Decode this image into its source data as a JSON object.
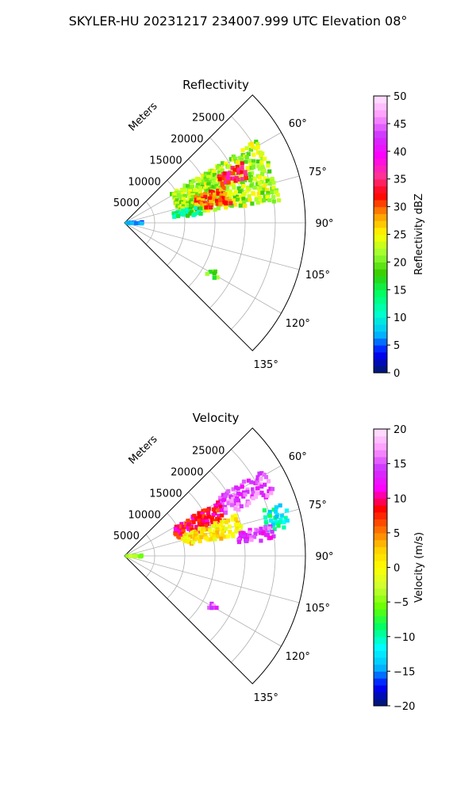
{
  "figure_title": "SKYLER-HU  20231217  234007.999 UTC Elevation 08°",
  "chart_data": [
    {
      "type": "polar-sector",
      "title": "Reflectivity",
      "radial_axis_label": "Meters",
      "radial_ticks": [
        "5000",
        "10000",
        "15000",
        "20000",
        "25000"
      ],
      "angle_ticks": [
        "60°",
        "75°",
        "90°",
        "105°",
        "120°",
        "135°"
      ],
      "angle_range_deg": [
        45,
        135
      ],
      "range_max_m": 30000,
      "colorbar": {
        "label": "Reflectivity dBZ",
        "min": 0,
        "max": 50,
        "tick_labels": [
          "0",
          "5",
          "10",
          "15",
          "20",
          "25",
          "30",
          "35",
          "40",
          "45",
          "50"
        ],
        "stops": [
          "#001a66",
          "#0000ff",
          "#00bfff",
          "#00ffcc",
          "#00ff66",
          "#33cc00",
          "#99ff33",
          "#ffff00",
          "#ff9900",
          "#ff0000",
          "#ff3399",
          "#ff00ff",
          "#cc33ff",
          "#ff99ff",
          "#ffe6ff"
        ]
      },
      "echo_regions": [
        {
          "az": [
            58,
            82
          ],
          "range_km": [
            9,
            26
          ],
          "dBZ": 22
        },
        {
          "az": [
            63,
            70
          ],
          "range_km": [
            17,
            22
          ],
          "dBZ": 34
        },
        {
          "az": [
            70,
            80
          ],
          "range_km": [
            12,
            18
          ],
          "dBZ": 30
        },
        {
          "az": [
            78,
            84
          ],
          "range_km": [
            8,
            13
          ],
          "dBZ": 14
        },
        {
          "az": [
            88,
            93
          ],
          "range_km": [
            0,
            3
          ],
          "dBZ": 7
        },
        {
          "az": [
            118,
            122
          ],
          "range_km": [
            16,
            18
          ],
          "dBZ": 19
        }
      ]
    },
    {
      "type": "polar-sector",
      "title": "Velocity",
      "radial_axis_label": "Meters",
      "radial_ticks": [
        "5000",
        "10000",
        "15000",
        "20000",
        "25000"
      ],
      "angle_ticks": [
        "60°",
        "75°",
        "90°",
        "105°",
        "120°",
        "135°"
      ],
      "angle_range_deg": [
        45,
        135
      ],
      "range_max_m": 30000,
      "colorbar": {
        "label": "Velocity (m/s)",
        "min": -20,
        "max": 20,
        "tick_labels": [
          "−20",
          "−15",
          "−10",
          "−5",
          "0",
          "5",
          "10",
          "15",
          "20"
        ],
        "stops": [
          "#001a66",
          "#0000ff",
          "#00bfff",
          "#00ffff",
          "#00ff66",
          "#66ff00",
          "#ccff33",
          "#ffff00",
          "#ffcc00",
          "#ff6600",
          "#ff0000",
          "#ff00ff",
          "#cc33ff",
          "#ff99ff",
          "#ffe6ff"
        ]
      },
      "echo_regions": [
        {
          "az": [
            58,
            68
          ],
          "range_km": [
            18,
            27
          ],
          "m_s": 15
        },
        {
          "az": [
            60,
            72
          ],
          "range_km": [
            9,
            18
          ],
          "m_s": 9
        },
        {
          "az": [
            70,
            80
          ],
          "range_km": [
            10,
            20
          ],
          "m_s": 1
        },
        {
          "az": [
            72,
            80
          ],
          "range_km": [
            24,
            28
          ],
          "m_s": -11
        },
        {
          "az": [
            78,
            84
          ],
          "range_km": [
            19,
            25
          ],
          "m_s": 14
        },
        {
          "az": [
            88,
            93
          ],
          "range_km": [
            0,
            3
          ],
          "m_s": -6
        },
        {
          "az": [
            118,
            122
          ],
          "range_km": [
            16,
            18
          ],
          "m_s": 15
        }
      ]
    }
  ]
}
